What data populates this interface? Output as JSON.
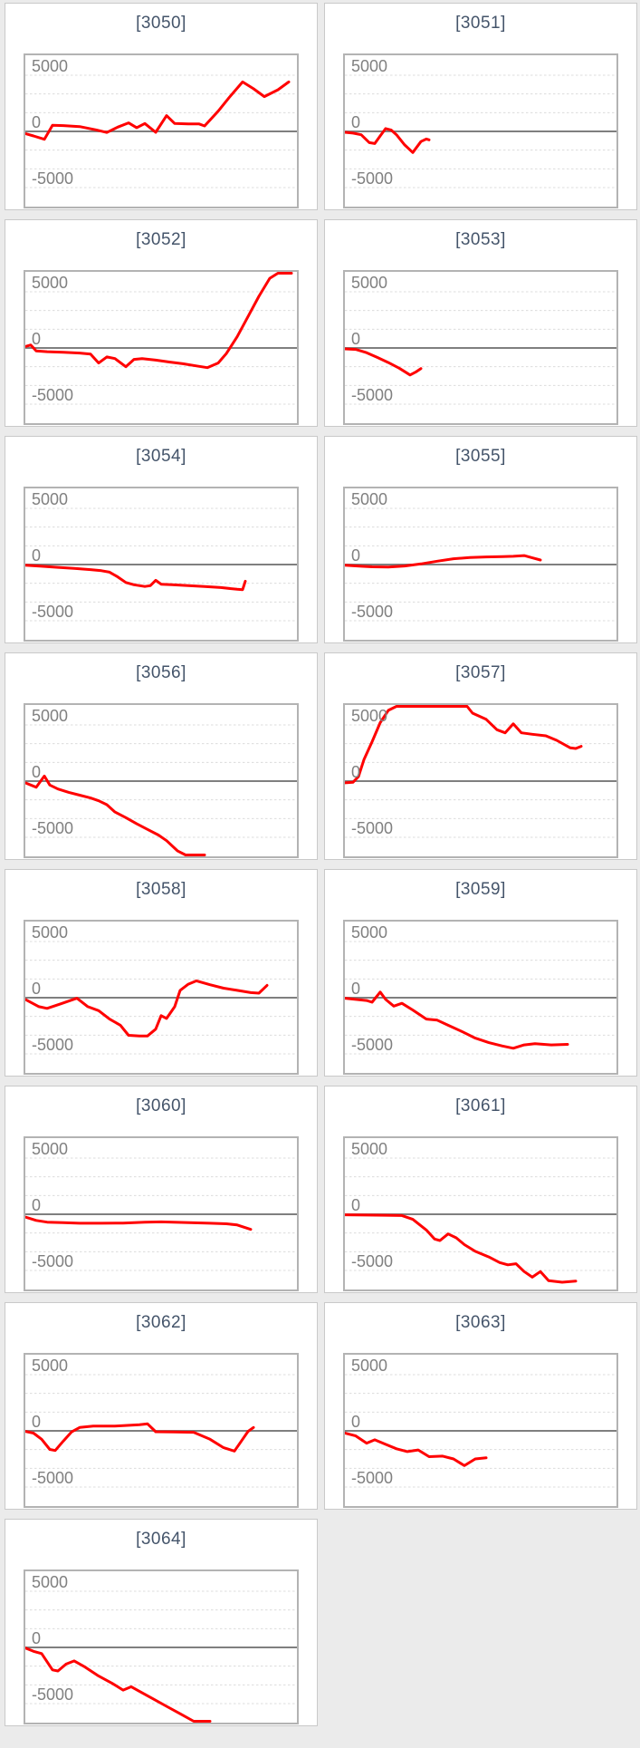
{
  "theme": {
    "page_bg": "#ebebeb",
    "card_bg": "#ffffff",
    "card_border": "#c9c9c9",
    "chart_border": "#b3b3b3",
    "title_color": "#44546a",
    "axis_label_color": "#808080",
    "gridline_color": "#dcdcdc",
    "zero_line_color": "#7f7f7f",
    "line_color": "#ff0000"
  },
  "axis": {
    "labels": [
      {
        "text": "5000",
        "value": 5000
      },
      {
        "text": "0",
        "value": 0
      },
      {
        "text": "-5000",
        "value": -5000
      }
    ],
    "gridline_values": [
      5000,
      3333,
      1667,
      -1667,
      -3333,
      -5000
    ],
    "ylim": [
      -6900,
      6900
    ],
    "grid": "dashed",
    "legend": "none"
  },
  "chart_data": [
    {
      "type": "line",
      "title": "[3050]",
      "xlabel": "",
      "ylabel": "",
      "points": [
        [
          0,
          -200
        ],
        [
          3,
          -400
        ],
        [
          7,
          -700
        ],
        [
          10,
          550
        ],
        [
          14,
          520
        ],
        [
          20,
          430
        ],
        [
          26,
          140
        ],
        [
          30,
          -100
        ],
        [
          34,
          380
        ],
        [
          38,
          760
        ],
        [
          41,
          330
        ],
        [
          44,
          700
        ],
        [
          48,
          -80
        ],
        [
          52,
          1400
        ],
        [
          55,
          700
        ],
        [
          60,
          660
        ],
        [
          64,
          660
        ],
        [
          66,
          480
        ],
        [
          71,
          1800
        ],
        [
          75,
          3000
        ],
        [
          80,
          4400
        ],
        [
          84,
          3800
        ],
        [
          88,
          3100
        ],
        [
          93,
          3700
        ],
        [
          97,
          4400
        ]
      ]
    },
    {
      "type": "line",
      "title": "[3051]",
      "xlabel": "",
      "ylabel": "",
      "points": [
        [
          0,
          -80
        ],
        [
          3,
          -150
        ],
        [
          6,
          -300
        ],
        [
          9,
          -1000
        ],
        [
          11,
          -1080
        ],
        [
          13,
          -400
        ],
        [
          15,
          250
        ],
        [
          17,
          130
        ],
        [
          19,
          -300
        ],
        [
          22,
          -1200
        ],
        [
          25,
          -1880
        ],
        [
          28,
          -900
        ],
        [
          30,
          -680
        ],
        [
          31,
          -750
        ]
      ]
    },
    {
      "type": "line",
      "title": "[3052]",
      "xlabel": "",
      "ylabel": "",
      "points": [
        [
          0,
          130
        ],
        [
          2,
          270
        ],
        [
          4,
          -270
        ],
        [
          8,
          -330
        ],
        [
          14,
          -380
        ],
        [
          20,
          -450
        ],
        [
          24,
          -540
        ],
        [
          27,
          -1340
        ],
        [
          30,
          -800
        ],
        [
          33,
          -940
        ],
        [
          37,
          -1670
        ],
        [
          40,
          -1020
        ],
        [
          43,
          -940
        ],
        [
          48,
          -1080
        ],
        [
          53,
          -1250
        ],
        [
          58,
          -1400
        ],
        [
          63,
          -1600
        ],
        [
          67,
          -1750
        ],
        [
          71,
          -1340
        ],
        [
          74,
          -500
        ],
        [
          78,
          1000
        ],
        [
          82,
          2800
        ],
        [
          86,
          4600
        ],
        [
          90,
          6200
        ],
        [
          93,
          6850
        ],
        [
          98,
          6850
        ]
      ]
    },
    {
      "type": "line",
      "title": "[3053]",
      "xlabel": "",
      "ylabel": "",
      "points": [
        [
          0,
          -80
        ],
        [
          4,
          -130
        ],
        [
          8,
          -420
        ],
        [
          12,
          -850
        ],
        [
          16,
          -1300
        ],
        [
          20,
          -1800
        ],
        [
          24,
          -2400
        ],
        [
          26,
          -2150
        ],
        [
          28,
          -1830
        ]
      ]
    },
    {
      "type": "line",
      "title": "[3054]",
      "xlabel": "",
      "ylabel": "",
      "points": [
        [
          0,
          -60
        ],
        [
          6,
          -150
        ],
        [
          12,
          -250
        ],
        [
          18,
          -350
        ],
        [
          24,
          -450
        ],
        [
          28,
          -550
        ],
        [
          31,
          -680
        ],
        [
          34,
          -1100
        ],
        [
          37,
          -1600
        ],
        [
          40,
          -1800
        ],
        [
          44,
          -1950
        ],
        [
          46,
          -1880
        ],
        [
          48,
          -1400
        ],
        [
          50,
          -1750
        ],
        [
          54,
          -1800
        ],
        [
          60,
          -1880
        ],
        [
          66,
          -1950
        ],
        [
          72,
          -2050
        ],
        [
          78,
          -2200
        ],
        [
          80,
          -2230
        ],
        [
          81,
          -1480
        ]
      ]
    },
    {
      "type": "line",
      "title": "[3055]",
      "xlabel": "",
      "ylabel": "",
      "points": [
        [
          0,
          -60
        ],
        [
          6,
          -150
        ],
        [
          10,
          -200
        ],
        [
          16,
          -215
        ],
        [
          22,
          -130
        ],
        [
          28,
          60
        ],
        [
          34,
          300
        ],
        [
          40,
          520
        ],
        [
          46,
          620
        ],
        [
          52,
          680
        ],
        [
          58,
          700
        ],
        [
          62,
          730
        ],
        [
          66,
          800
        ],
        [
          69,
          600
        ],
        [
          72,
          400
        ]
      ]
    },
    {
      "type": "line",
      "title": "[3056]",
      "xlabel": "",
      "ylabel": "",
      "points": [
        [
          0,
          -150
        ],
        [
          2,
          -350
        ],
        [
          4,
          -550
        ],
        [
          7,
          450
        ],
        [
          9,
          -350
        ],
        [
          12,
          -700
        ],
        [
          16,
          -1000
        ],
        [
          20,
          -1250
        ],
        [
          24,
          -1500
        ],
        [
          27,
          -1750
        ],
        [
          30,
          -2100
        ],
        [
          33,
          -2750
        ],
        [
          37,
          -3250
        ],
        [
          41,
          -3800
        ],
        [
          45,
          -4300
        ],
        [
          49,
          -4800
        ],
        [
          52,
          -5300
        ],
        [
          56,
          -6200
        ],
        [
          59,
          -6850
        ],
        [
          66,
          -6850
        ]
      ]
    },
    {
      "type": "line",
      "title": "[3057]",
      "xlabel": "",
      "ylabel": "",
      "points": [
        [
          0,
          -150
        ],
        [
          3,
          -100
        ],
        [
          5,
          400
        ],
        [
          7,
          1900
        ],
        [
          10,
          3500
        ],
        [
          13,
          5200
        ],
        [
          16,
          6300
        ],
        [
          19,
          6750
        ],
        [
          45,
          6750
        ],
        [
          47,
          6050
        ],
        [
          52,
          5500
        ],
        [
          56,
          4570
        ],
        [
          59,
          4300
        ],
        [
          62,
          5100
        ],
        [
          65,
          4300
        ],
        [
          69,
          4170
        ],
        [
          74,
          4030
        ],
        [
          78,
          3630
        ],
        [
          83,
          2960
        ],
        [
          85,
          2900
        ],
        [
          87,
          3100
        ]
      ]
    },
    {
      "type": "line",
      "title": "[3058]",
      "xlabel": "",
      "ylabel": "",
      "points": [
        [
          0,
          -150
        ],
        [
          5,
          -800
        ],
        [
          8,
          -950
        ],
        [
          13,
          -550
        ],
        [
          19,
          -50
        ],
        [
          23,
          -800
        ],
        [
          27,
          -1150
        ],
        [
          31,
          -1900
        ],
        [
          35,
          -2450
        ],
        [
          38,
          -3350
        ],
        [
          42,
          -3400
        ],
        [
          45,
          -3400
        ],
        [
          48,
          -2800
        ],
        [
          50,
          -1600
        ],
        [
          52,
          -1850
        ],
        [
          55,
          -800
        ],
        [
          57,
          650
        ],
        [
          60,
          1200
        ],
        [
          63,
          1500
        ],
        [
          68,
          1150
        ],
        [
          73,
          850
        ],
        [
          78,
          650
        ],
        [
          83,
          450
        ],
        [
          86,
          400
        ],
        [
          89,
          1100
        ]
      ]
    },
    {
      "type": "line",
      "title": "[3059]",
      "xlabel": "",
      "ylabel": "",
      "points": [
        [
          0,
          -50
        ],
        [
          8,
          -250
        ],
        [
          10,
          -400
        ],
        [
          13,
          500
        ],
        [
          15,
          -150
        ],
        [
          18,
          -750
        ],
        [
          21,
          -500
        ],
        [
          25,
          -1100
        ],
        [
          30,
          -1900
        ],
        [
          34,
          -2000
        ],
        [
          38,
          -2450
        ],
        [
          43,
          -3000
        ],
        [
          48,
          -3600
        ],
        [
          53,
          -4000
        ],
        [
          58,
          -4300
        ],
        [
          62,
          -4500
        ],
        [
          66,
          -4200
        ],
        [
          70,
          -4100
        ],
        [
          76,
          -4200
        ],
        [
          82,
          -4150
        ]
      ]
    },
    {
      "type": "line",
      "title": "[3060]",
      "xlabel": "",
      "ylabel": "",
      "points": [
        [
          0,
          -250
        ],
        [
          4,
          -550
        ],
        [
          8,
          -700
        ],
        [
          14,
          -750
        ],
        [
          20,
          -800
        ],
        [
          28,
          -800
        ],
        [
          36,
          -780
        ],
        [
          44,
          -700
        ],
        [
          50,
          -680
        ],
        [
          56,
          -720
        ],
        [
          62,
          -760
        ],
        [
          68,
          -800
        ],
        [
          74,
          -850
        ],
        [
          78,
          -950
        ],
        [
          83,
          -1350
        ]
      ]
    },
    {
      "type": "line",
      "title": "[3061]",
      "xlabel": "",
      "ylabel": "",
      "points": [
        [
          0,
          -50
        ],
        [
          8,
          -70
        ],
        [
          15,
          -90
        ],
        [
          21,
          -110
        ],
        [
          25,
          -450
        ],
        [
          30,
          -1400
        ],
        [
          33,
          -2200
        ],
        [
          35,
          -2340
        ],
        [
          38,
          -1750
        ],
        [
          41,
          -2100
        ],
        [
          44,
          -2700
        ],
        [
          48,
          -3300
        ],
        [
          53,
          -3800
        ],
        [
          57,
          -4300
        ],
        [
          60,
          -4500
        ],
        [
          63,
          -4400
        ],
        [
          66,
          -5100
        ],
        [
          69,
          -5600
        ],
        [
          72,
          -5100
        ],
        [
          75,
          -5900
        ],
        [
          80,
          -6050
        ],
        [
          85,
          -5950
        ]
      ]
    },
    {
      "type": "line",
      "title": "[3062]",
      "xlabel": "",
      "ylabel": "",
      "points": [
        [
          0,
          -50
        ],
        [
          3,
          -200
        ],
        [
          6,
          -750
        ],
        [
          9,
          -1650
        ],
        [
          11,
          -1750
        ],
        [
          14,
          -900
        ],
        [
          17,
          -100
        ],
        [
          20,
          300
        ],
        [
          25,
          420
        ],
        [
          33,
          430
        ],
        [
          42,
          550
        ],
        [
          45,
          620
        ],
        [
          48,
          -80
        ],
        [
          55,
          -100
        ],
        [
          62,
          -130
        ],
        [
          68,
          -750
        ],
        [
          73,
          -1500
        ],
        [
          77,
          -1800
        ],
        [
          80,
          -750
        ],
        [
          82,
          -50
        ],
        [
          84,
          300
        ]
      ]
    },
    {
      "type": "line",
      "title": "[3063]",
      "xlabel": "",
      "ylabel": "",
      "points": [
        [
          0,
          -200
        ],
        [
          4,
          -450
        ],
        [
          8,
          -1100
        ],
        [
          11,
          -800
        ],
        [
          15,
          -1200
        ],
        [
          19,
          -1600
        ],
        [
          23,
          -1850
        ],
        [
          27,
          -1700
        ],
        [
          31,
          -2300
        ],
        [
          36,
          -2250
        ],
        [
          40,
          -2500
        ],
        [
          44,
          -3100
        ],
        [
          48,
          -2500
        ],
        [
          52,
          -2400
        ]
      ]
    },
    {
      "type": "line",
      "title": "[3064]",
      "xlabel": "",
      "ylabel": "",
      "points": [
        [
          0,
          -50
        ],
        [
          3,
          -350
        ],
        [
          6,
          -550
        ],
        [
          10,
          -2000
        ],
        [
          12,
          -2100
        ],
        [
          15,
          -1480
        ],
        [
          18,
          -1200
        ],
        [
          22,
          -1750
        ],
        [
          27,
          -2550
        ],
        [
          32,
          -3200
        ],
        [
          36,
          -3800
        ],
        [
          39,
          -3500
        ],
        [
          42,
          -3900
        ],
        [
          47,
          -4570
        ],
        [
          52,
          -5240
        ],
        [
          57,
          -5900
        ],
        [
          62,
          -6700
        ],
        [
          68,
          -6850
        ]
      ]
    }
  ]
}
